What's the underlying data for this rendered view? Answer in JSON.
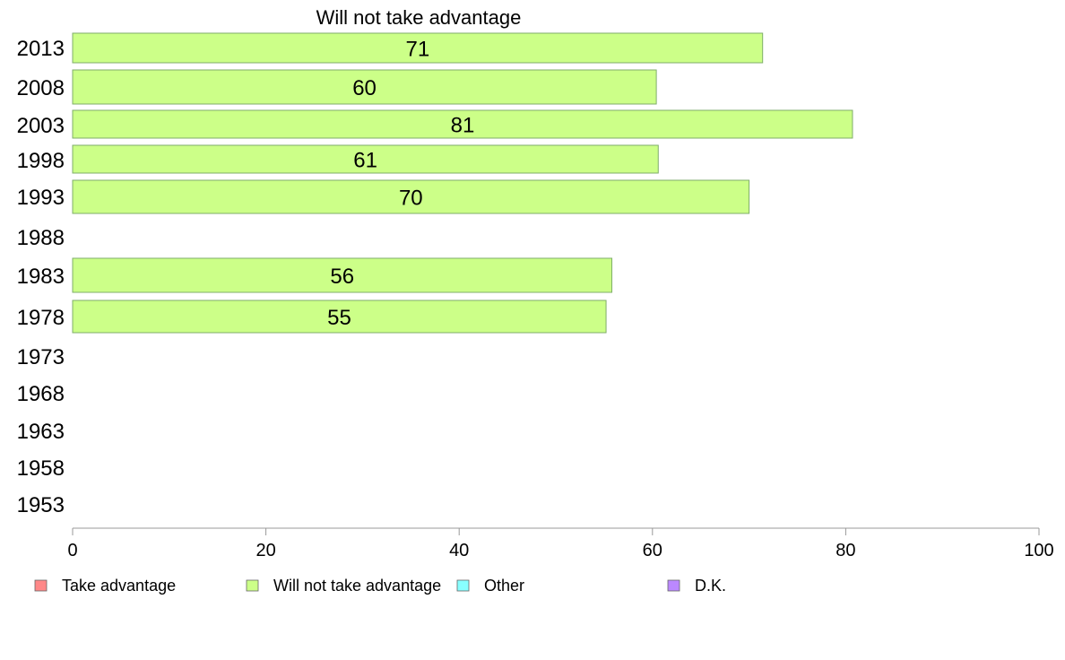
{
  "chart_data": {
    "type": "bar",
    "orientation": "horizontal",
    "title": "Will not take advantage",
    "categories": [
      "2013",
      "2008",
      "2003",
      "1998",
      "1993",
      "1988",
      "1983",
      "1978",
      "1973",
      "1968",
      "1963",
      "1958",
      "1953"
    ],
    "series": [
      {
        "name": "Will not take advantage",
        "color": "#ccff88",
        "values": [
          71.4,
          60.4,
          80.7,
          60.6,
          70.0,
          null,
          55.8,
          55.2,
          null,
          null,
          null,
          null,
          null
        ],
        "labels": [
          "71",
          "60",
          "81",
          "61",
          "70",
          "",
          "56",
          "55",
          "",
          "",
          "",
          "",
          ""
        ]
      }
    ],
    "xlim": [
      0,
      100
    ],
    "xticks": [
      "0",
      "20",
      "40",
      "60",
      "80",
      "100"
    ],
    "grid": false,
    "legend": {
      "position": "bottom",
      "items": [
        {
          "label": "Take advantage",
          "color": "#ff8888"
        },
        {
          "label": "Will not take advantage",
          "color": "#ccff88"
        },
        {
          "label": "Other",
          "color": "#88ffff"
        },
        {
          "label": "D.K.",
          "color": "#bb88ff"
        }
      ]
    }
  }
}
